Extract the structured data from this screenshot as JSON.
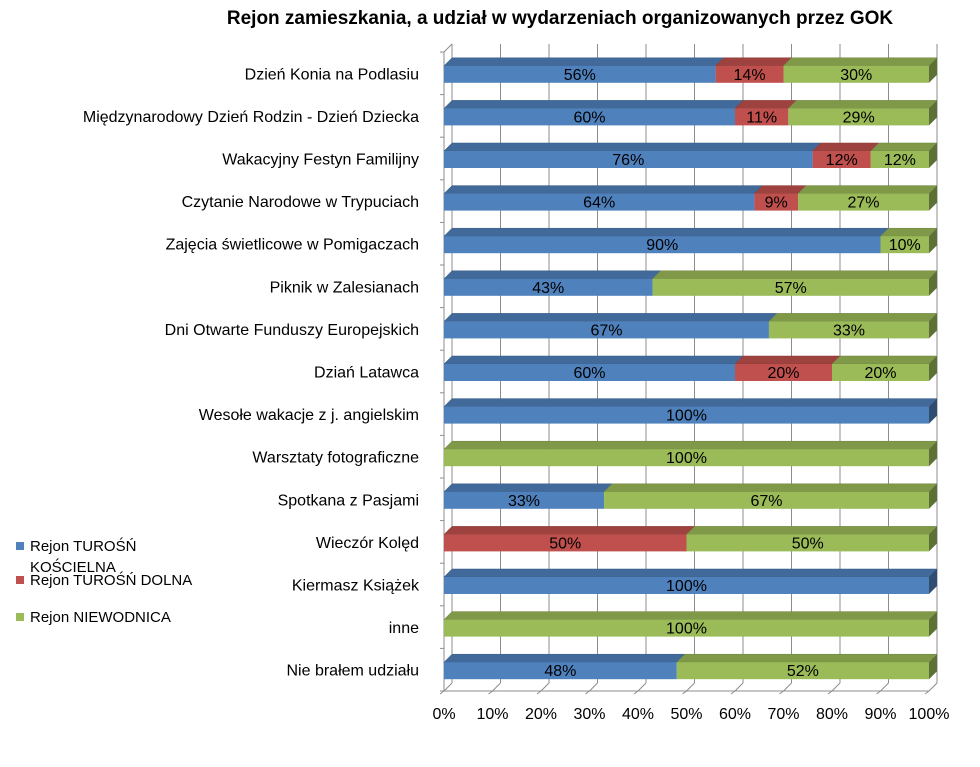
{
  "chart_data": {
    "type": "bar",
    "orientation": "horizontal",
    "stacked": "100%",
    "title": "Rejon zamieszkania, a udział w wydarzeniach organizowanych przez GOK",
    "xlabel": "",
    "ylabel": "",
    "xlim": [
      0,
      100
    ],
    "x_ticks": [
      "0%",
      "10%",
      "20%",
      "30%",
      "40%",
      "50%",
      "60%",
      "70%",
      "80%",
      "90%",
      "100%"
    ],
    "legend_position": "left",
    "categories": [
      "Dzień Konia na Podlasiu",
      "Międzynarodowy Dzień Rodzin - Dzień Dziecka",
      "Wakacyjny Festyn Familijny",
      "Czytanie Narodowe w Trypuciach",
      "Zajęcia świetlicowe w Pomigaczach",
      "Piknik w Zalesianach",
      "Dni Otwarte Funduszy Europejskich",
      "Dziań Latawca",
      "Wesołe wakacje z j. angielskim",
      "Warsztaty fotograficzne",
      "Spotkana z Pasjami",
      "Wieczór Kolęd",
      "Kiermasz Książek",
      "inne",
      "Nie brałem udziału"
    ],
    "series": [
      {
        "name": "Rejon TUROŚŃ KOŚCIELNA",
        "color": "#4F81BD",
        "values": [
          56,
          60,
          76,
          64,
          90,
          43,
          67,
          60,
          100,
          0,
          33,
          0,
          100,
          0,
          48
        ]
      },
      {
        "name": "Rejon TUROŚŃ DOLNA",
        "color": "#C0504D",
        "values": [
          14,
          11,
          12,
          9,
          0,
          0,
          0,
          20,
          0,
          0,
          0,
          50,
          0,
          0,
          0
        ]
      },
      {
        "name": "Rejon NIEWODNICA",
        "color": "#9BBB59",
        "values": [
          30,
          29,
          12,
          27,
          10,
          57,
          33,
          20,
          0,
          100,
          67,
          50,
          0,
          100,
          52
        ]
      }
    ]
  }
}
